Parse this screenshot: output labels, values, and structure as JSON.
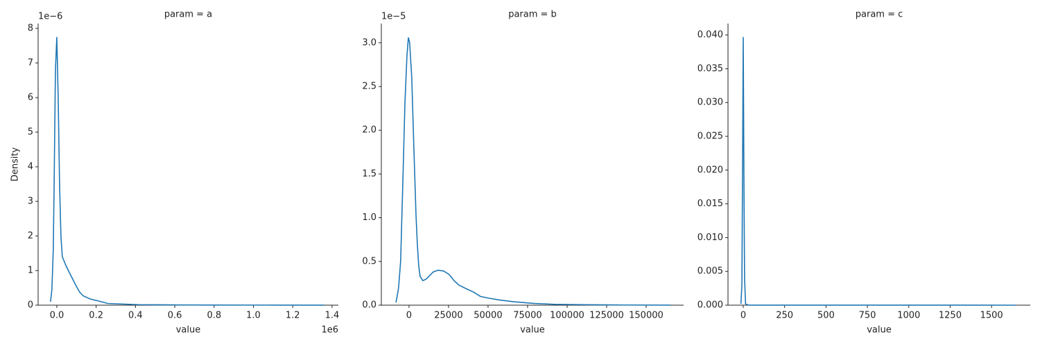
{
  "chart_data": [
    {
      "type": "line",
      "title": "param = a",
      "x_label": "value",
      "y_label": "Density",
      "x_offset_label": "1e6",
      "y_offset_label": "1e−6",
      "color": "#1f77b4",
      "x": [
        -32000,
        -25000,
        -18000,
        -14000,
        -7000,
        0,
        7000,
        14000,
        21000,
        28000,
        46000,
        63000,
        81000,
        99000,
        116000,
        134000,
        169000,
        205000,
        240000,
        258000,
        346000,
        416000,
        593000,
        769000,
        1120000,
        1360000
      ],
      "values": [
        1e-07,
        4.5e-07,
        1.6e-06,
        3.3e-06,
        6.8e-06,
        7.75e-06,
        6e-06,
        3.5e-06,
        2e-06,
        1.4e-06,
        1.15e-06,
        9.5e-07,
        7.5e-07,
        5.5e-07,
        3.8e-07,
        2.7e-07,
        1.8e-07,
        1.3e-07,
        8e-08,
        5e-08,
        3e-08,
        1.5e-08,
        8e-09,
        4e-09,
        2e-09,
        1e-09
      ],
      "xlim": [
        -95000,
        1432000
      ],
      "ylim": [
        0,
        8.14e-06
      ],
      "xticks": [
        {
          "value": 0,
          "label": "0.0"
        },
        {
          "value": 200000,
          "label": "0.2"
        },
        {
          "value": 400000,
          "label": "0.4"
        },
        {
          "value": 600000,
          "label": "0.6"
        },
        {
          "value": 800000,
          "label": "0.8"
        },
        {
          "value": 1000000,
          "label": "1.0"
        },
        {
          "value": 1200000,
          "label": "1.2"
        },
        {
          "value": 1400000,
          "label": "1.4"
        }
      ],
      "yticks": [
        {
          "value": 0,
          "label": "0"
        },
        {
          "value": 1e-06,
          "label": "1"
        },
        {
          "value": 2e-06,
          "label": "2"
        },
        {
          "value": 3e-06,
          "label": "3"
        },
        {
          "value": 4e-06,
          "label": "4"
        },
        {
          "value": 5e-06,
          "label": "5"
        },
        {
          "value": 6e-06,
          "label": "6"
        },
        {
          "value": 7e-06,
          "label": "7"
        },
        {
          "value": 8e-06,
          "label": "8"
        }
      ]
    },
    {
      "type": "line",
      "title": "param = b",
      "x_label": "value",
      "y_offset_label": "1e−5",
      "color": "#1f77b4",
      "x": [
        -8300,
        -7500,
        -6600,
        -5300,
        -3900,
        -2600,
        -1300,
        -400,
        400,
        1750,
        3070,
        4390,
        5260,
        6140,
        7020,
        8770,
        10960,
        13160,
        15350,
        18420,
        21930,
        25440,
        28510,
        31580,
        35960,
        40790,
        45180,
        50440,
        57020,
        65790,
        78950,
        92100,
        109650,
        135960,
        165350
      ],
      "values": [
        3e-07,
        1e-06,
        2e-06,
        5e-06,
        1.4e-05,
        2.3e-05,
        2.85e-05,
        3.06e-05,
        3e-05,
        2.6e-05,
        1.8e-05,
        1.05e-05,
        7e-06,
        4.5e-06,
        3.3e-06,
        2.8e-06,
        3e-06,
        3.4e-06,
        3.8e-06,
        4e-06,
        3.9e-06,
        3.5e-06,
        2.8e-06,
        2.3e-06,
        1.9e-06,
        1.5e-06,
        1e-06,
        8e-07,
        6e-07,
        4e-07,
        2e-07,
        1e-07,
        6e-08,
        2e-08,
        5e-09
      ],
      "xlim": [
        -17500,
        173700
      ],
      "ylim": [
        0,
        3.22e-05
      ],
      "xticks": [
        0,
        25000,
        50000,
        75000,
        100000,
        125000,
        150000
      ],
      "yticks": [
        {
          "value": 0,
          "label": "0.0"
        },
        {
          "value": 5e-06,
          "label": "0.5"
        },
        {
          "value": 1e-05,
          "label": "1.0"
        },
        {
          "value": 1.5e-05,
          "label": "1.5"
        },
        {
          "value": 2e-05,
          "label": "2.0"
        },
        {
          "value": 2.5e-05,
          "label": "2.5"
        },
        {
          "value": 3e-05,
          "label": "3.0"
        }
      ]
    },
    {
      "type": "line",
      "title": "param = c",
      "x_label": "value",
      "color": "#1f77b4",
      "x": [
        -14,
        -8,
        -3,
        0,
        4,
        8,
        14,
        30,
        1645
      ],
      "values": [
        0.0002,
        0.003,
        0.025,
        0.0397,
        0.02,
        0.004,
        0.0002,
        1e-05,
        0
      ],
      "xlim": [
        -92,
        1734
      ],
      "ylim": [
        0,
        0.0417
      ],
      "xticks": [
        0,
        250,
        500,
        750,
        1000,
        1250,
        1500
      ],
      "yticks": [
        {
          "value": 0,
          "label": "0.000"
        },
        0.005,
        {
          "value": 0.01,
          "label": "0.010"
        },
        0.015,
        {
          "value": 0.02,
          "label": "0.020"
        },
        0.025,
        {
          "value": 0.03,
          "label": "0.030"
        },
        0.035,
        {
          "value": 0.04,
          "label": "0.040"
        }
      ]
    }
  ]
}
